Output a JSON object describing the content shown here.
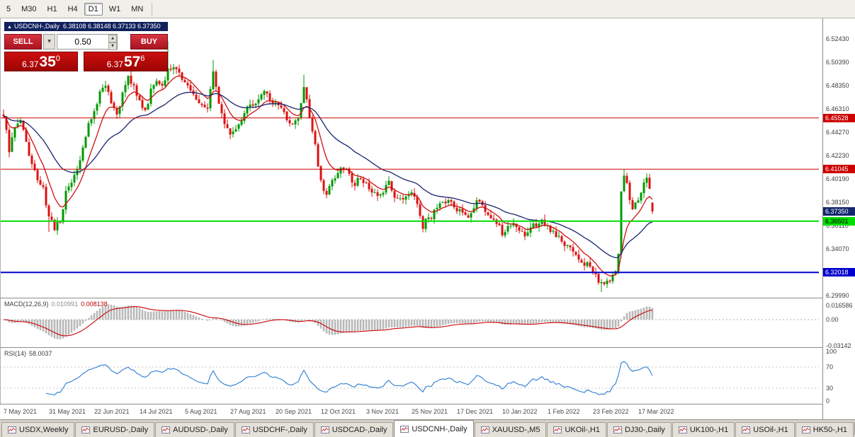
{
  "toolbar": {
    "timeframes": [
      {
        "label": "5",
        "active": false
      },
      {
        "label": "M30",
        "active": false
      },
      {
        "label": "H1",
        "active": false
      },
      {
        "label": "H4",
        "active": false
      },
      {
        "label": "D1",
        "active": true
      },
      {
        "label": "W1",
        "active": false
      },
      {
        "label": "MN",
        "active": false
      }
    ]
  },
  "icons": {
    "title_marker": "▲",
    "volume_dropdown": "▼",
    "spin_up": "▲",
    "spin_down": "▼",
    "tab_scroll_left": "◄",
    "tab_scroll_right": "►"
  },
  "chart_header": {
    "title": "USDCNH-,Daily",
    "ohlc_text": "6.38108 6.38148 6.37133 6.37350"
  },
  "trade_widget": {
    "sell_label": "SELL",
    "buy_label": "BUY",
    "volume": "0.50",
    "sell_price": {
      "base": "6.37",
      "pips": "35",
      "frac": "0"
    },
    "buy_price": {
      "base": "6.37",
      "pips": "57",
      "frac": "6"
    }
  },
  "indicators": {
    "macd": {
      "name": "MACD(12,26,9)",
      "value_main": "0.010991",
      "value_signal": "0.008138"
    },
    "rsi": {
      "name": "RSI(14)",
      "value": "58.0037"
    }
  },
  "chart_data": {
    "type": "candlestick",
    "symbol": "USDCNH",
    "timeframe": "Daily",
    "current_ohlc": {
      "open": 6.38108,
      "high": 6.38148,
      "low": 6.37133,
      "close": 6.3735
    },
    "bar_count": 230,
    "bars_per_x_tick": 16,
    "x_tick_labels": [
      "7 May 2021",
      "31 May 2021",
      "22 Jun 2021",
      "14 Jul 2021",
      "5 Aug 2021",
      "27 Aug 2021",
      "20 Sep 2021",
      "12 Oct 2021",
      "3 Nov 2021",
      "25 Nov 2021",
      "17 Dec 2021",
      "10 Jan 2022",
      "1 Feb 2022",
      "23 Feb 2022",
      "17 Mar 2022"
    ],
    "y_axis": {
      "first_tick": 6.5243,
      "tick_step": 0.0204,
      "tick_count": 12,
      "decimals": 5
    },
    "horizontal_lines": [
      {
        "price": 6.45528,
        "label": "6.45528",
        "color": "#cc0000",
        "width": 1,
        "text_color": "#ffffff"
      },
      {
        "price": 6.41045,
        "label": "6.41045",
        "color": "#cc0000",
        "width": 1,
        "text_color": "#ffffff"
      },
      {
        "price": 6.36501,
        "label": "6.36501",
        "color": "#00dd00",
        "width": 2,
        "text_color": "#000000"
      },
      {
        "price": 6.32018,
        "label": "6.32018",
        "color": "#0000cc",
        "width": 2,
        "text_color": "#ffffff"
      }
    ],
    "current_price_tag": {
      "price": 6.3735,
      "label": "6.37350",
      "color": "#14266e"
    },
    "up_color": "#009900",
    "down_color": "#dd1111",
    "moving_averages": [
      {
        "period": 9,
        "color": "#cc1111"
      },
      {
        "period": 30,
        "color": "#1a2570"
      }
    ],
    "close_path_anchors": [
      [
        0,
        6.458
      ],
      [
        2,
        6.428
      ],
      [
        4,
        6.448
      ],
      [
        6,
        6.452
      ],
      [
        8,
        6.432
      ],
      [
        10,
        6.412
      ],
      [
        12,
        6.402
      ],
      [
        14,
        6.392
      ],
      [
        16,
        6.368
      ],
      [
        18,
        6.36
      ],
      [
        20,
        6.364
      ],
      [
        22,
        6.392
      ],
      [
        24,
        6.4
      ],
      [
        26,
        6.408
      ],
      [
        28,
        6.428
      ],
      [
        30,
        6.448
      ],
      [
        32,
        6.462
      ],
      [
        34,
        6.478
      ],
      [
        36,
        6.482
      ],
      [
        38,
        6.468
      ],
      [
        40,
        6.458
      ],
      [
        42,
        6.476
      ],
      [
        44,
        6.49
      ],
      [
        46,
        6.482
      ],
      [
        48,
        6.47
      ],
      [
        50,
        6.462
      ],
      [
        52,
        6.478
      ],
      [
        54,
        6.488
      ],
      [
        56,
        6.482
      ],
      [
        58,
        6.5
      ],
      [
        60,
        6.498
      ],
      [
        62,
        6.492
      ],
      [
        64,
        6.488
      ],
      [
        66,
        6.478
      ],
      [
        68,
        6.472
      ],
      [
        70,
        6.465
      ],
      [
        72,
        6.462
      ],
      [
        74,
        6.496
      ],
      [
        76,
        6.468
      ],
      [
        78,
        6.452
      ],
      [
        80,
        6.442
      ],
      [
        82,
        6.447
      ],
      [
        84,
        6.455
      ],
      [
        86,
        6.462
      ],
      [
        88,
        6.466
      ],
      [
        90,
        6.472
      ],
      [
        92,
        6.478
      ],
      [
        94,
        6.472
      ],
      [
        96,
        6.468
      ],
      [
        98,
        6.462
      ],
      [
        100,
        6.455
      ],
      [
        102,
        6.45
      ],
      [
        104,
        6.452
      ],
      [
        106,
        6.48
      ],
      [
        108,
        6.458
      ],
      [
        110,
        6.43
      ],
      [
        112,
        6.398
      ],
      [
        114,
        6.388
      ],
      [
        116,
        6.402
      ],
      [
        118,
        6.408
      ],
      [
        120,
        6.412
      ],
      [
        122,
        6.405
      ],
      [
        124,
        6.398
      ],
      [
        126,
        6.402
      ],
      [
        128,
        6.398
      ],
      [
        130,
        6.392
      ],
      [
        132,
        6.388
      ],
      [
        134,
        6.392
      ],
      [
        136,
        6.398
      ],
      [
        138,
        6.388
      ],
      [
        140,
        6.382
      ],
      [
        142,
        6.388
      ],
      [
        144,
        6.392
      ],
      [
        146,
        6.378
      ],
      [
        148,
        6.36
      ],
      [
        150,
        6.368
      ],
      [
        152,
        6.372
      ],
      [
        154,
        6.378
      ],
      [
        156,
        6.382
      ],
      [
        158,
        6.38
      ],
      [
        160,
        6.376
      ],
      [
        162,
        6.372
      ],
      [
        164,
        6.37
      ],
      [
        166,
        6.378
      ],
      [
        168,
        6.384
      ],
      [
        170,
        6.376
      ],
      [
        172,
        6.37
      ],
      [
        174,
        6.362
      ],
      [
        176,
        6.355
      ],
      [
        178,
        6.358
      ],
      [
        180,
        6.362
      ],
      [
        182,
        6.358
      ],
      [
        184,
        6.354
      ],
      [
        186,
        6.358
      ],
      [
        188,
        6.362
      ],
      [
        190,
        6.364
      ],
      [
        192,
        6.36
      ],
      [
        194,
        6.356
      ],
      [
        196,
        6.352
      ],
      [
        198,
        6.344
      ],
      [
        200,
        6.34
      ],
      [
        202,
        6.334
      ],
      [
        204,
        6.33
      ],
      [
        206,
        6.326
      ],
      [
        208,
        6.32
      ],
      [
        210,
        6.312
      ],
      [
        212,
        6.308
      ],
      [
        214,
        6.314
      ],
      [
        216,
        6.32
      ],
      [
        217,
        6.335
      ],
      [
        218,
        6.388
      ],
      [
        219,
        6.405
      ],
      [
        220,
        6.398
      ],
      [
        221,
        6.382
      ],
      [
        222,
        6.374
      ],
      [
        223,
        6.38
      ],
      [
        224,
        6.384
      ],
      [
        225,
        6.39
      ],
      [
        226,
        6.396
      ],
      [
        227,
        6.4
      ],
      [
        228,
        6.392
      ],
      [
        229,
        6.3735
      ]
    ],
    "bar_overrides": [
      {
        "i": 16,
        "low": 6.3555
      },
      {
        "i": 58,
        "high": 6.5225
      },
      {
        "i": 74,
        "high": 6.506
      },
      {
        "i": 106,
        "high": 6.493
      },
      {
        "i": 211,
        "low": 6.303
      },
      {
        "i": 219,
        "high": 6.41045
      }
    ],
    "macd_panel": {
      "params": [
        12,
        26,
        9
      ],
      "histogram_color": "#b8b8b8",
      "signal_color": "#cc0000",
      "y_ticks": [
        "0.016586",
        "0.00",
        "-0.03142"
      ],
      "y_tick_values": [
        0.016586,
        0,
        -0.03142
      ]
    },
    "rsi_panel": {
      "period": 14,
      "line_color": "#2b7cd3",
      "levels": [
        70,
        30
      ],
      "y_ticks": [
        "100",
        "70",
        "30",
        "0"
      ],
      "y_tick_values": [
        100,
        70,
        30,
        0
      ]
    }
  },
  "tabs": {
    "items": [
      {
        "label": "USDX,Weekly",
        "active": false
      },
      {
        "label": "EURUSD-,Daily",
        "active": false
      },
      {
        "label": "AUDUSD-,Daily",
        "active": false
      },
      {
        "label": "USDCHF-,Daily",
        "active": false
      },
      {
        "label": "USDCAD-,Daily",
        "active": false
      },
      {
        "label": "USDCNH-,Daily",
        "active": true
      },
      {
        "label": "XAUUSD-,M5",
        "active": false
      },
      {
        "label": "UKOil-,H1",
        "active": false
      },
      {
        "label": "DJ30-,Daily",
        "active": false
      },
      {
        "label": "UK100-,H1",
        "active": false
      },
      {
        "label": "USOil-,H1",
        "active": false
      },
      {
        "label": "HK50-,H1",
        "active": false
      }
    ]
  }
}
